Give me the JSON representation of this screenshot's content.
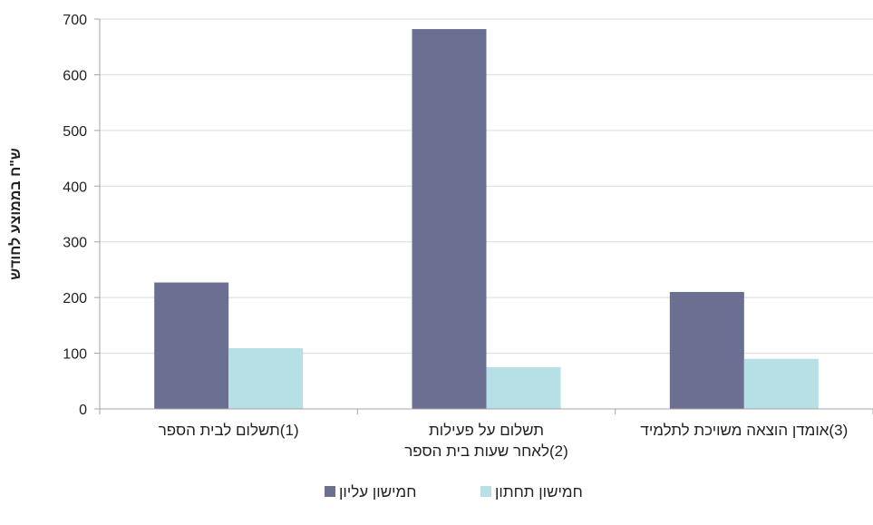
{
  "chart_data": {
    "type": "bar",
    "title": "",
    "xlabel": "",
    "ylabel": "ש\"ח בממוצע לחודש",
    "ylim": [
      0,
      700
    ],
    "yticks": [
      0,
      100,
      200,
      300,
      400,
      500,
      600,
      700
    ],
    "grid": true,
    "legend_position": "bottom",
    "categories": [
      [
        "(1)תשלום לבית הספר"
      ],
      [
        "תשלום על פעילות",
        "(2)לאחר שעות בית הספר"
      ],
      [
        "(3)אומדן הוצאה משויכת לתלמיד"
      ]
    ],
    "series": [
      {
        "name": "חמישון עליון",
        "color": "#6b7093",
        "values": [
          227,
          682,
          210
        ]
      },
      {
        "name": "חמישון תחתון",
        "color": "#b7dfe6",
        "values": [
          109,
          75,
          90
        ]
      }
    ]
  }
}
